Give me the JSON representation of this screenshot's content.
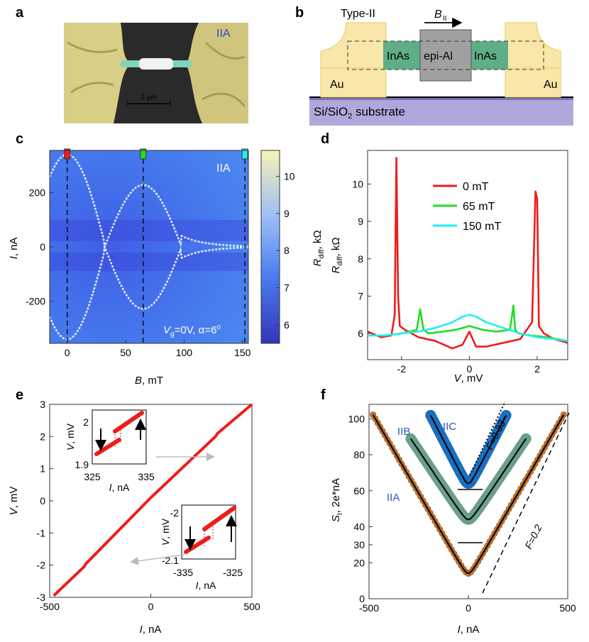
{
  "panel_labels": {
    "a": "a",
    "b": "b",
    "c": "c",
    "d": "d",
    "e": "e",
    "f": "f"
  },
  "panel_a": {
    "sample": "IIA",
    "scalebar": "1 µm"
  },
  "panel_b": {
    "title": "Type-II",
    "field_symbol": "B",
    "field_sub": "II",
    "inas_left": "InAs",
    "inas_right": "InAs",
    "epi": "epi-Al",
    "au_left": "Au",
    "au_right": "Au",
    "substrate": "Si/SiO",
    "substrate_sub": "2",
    "substrate_rest": " substrate"
  },
  "colors": {
    "red": "#ee1c1c",
    "green": "#22dd22",
    "cyan": "#22eeee",
    "brown": "#c87830",
    "teal": "#6aa08a",
    "blue": "#1a6fbf",
    "au": "#f8e7a8",
    "inas": "#5fae86",
    "epi": "#a0a0a0",
    "substrate": "#b0a8dc",
    "colormap_low": "#3333bb",
    "colormap_mid": "#4d88f0",
    "colormap_high": "#f6f3b8"
  },
  "chart_data": [
    {
      "panel": "c",
      "type": "heatmap",
      "xlabel_sym": "B",
      "xlabel_unit": ", mT",
      "ylabel_sym": "I",
      "ylabel_unit": ", nA",
      "xlim": [
        -15,
        155
      ],
      "ylim": [
        -355,
        355
      ],
      "xticks": [
        0,
        50,
        100,
        150
      ],
      "yticks": [
        -200,
        0,
        200
      ],
      "markers": [
        0,
        65,
        152
      ],
      "annotation": "IIA",
      "annotation2": "=0V, α=6",
      "annotation2_pre": "V",
      "annotation2_sub": "g",
      "annotation2_sup": "o",
      "colorbar": {
        "label_sym": "R",
        "label_sub": "diff",
        "label_unit": ", kΩ",
        "ticks": [
          6,
          7,
          8,
          9,
          10
        ],
        "range": [
          5.5,
          10.7
        ]
      }
    },
    {
      "panel": "d",
      "type": "line",
      "xlabel_sym": "V",
      "xlabel_unit": ", mV",
      "ylabel_sym": "R",
      "ylabel_sub": "diff",
      "ylabel_unit": ", kΩ",
      "xlim": [
        -3,
        2.9
      ],
      "ylim": [
        5.3,
        10.9
      ],
      "xticks": [
        -2,
        0,
        2
      ],
      "yticks": [
        6,
        7,
        8,
        9,
        10
      ],
      "series": [
        {
          "name": "0  mT",
          "color": "#ee1c1c",
          "x": [
            -3,
            -2.6,
            -2.3,
            -2.2,
            -2.15,
            -2.1,
            -2.05,
            -1.9,
            -1.5,
            -1.0,
            -0.5,
            -0.2,
            0,
            0.2,
            0.5,
            1.0,
            1.5,
            1.85,
            1.95,
            2.0,
            2.05,
            2.2,
            2.5,
            2.9
          ],
          "y": [
            6.05,
            5.9,
            5.95,
            6.5,
            10.7,
            7.0,
            6.2,
            6.1,
            5.9,
            5.8,
            5.6,
            5.7,
            6.05,
            5.65,
            5.65,
            5.75,
            5.85,
            6.3,
            9.8,
            9.6,
            6.2,
            6.0,
            5.85,
            5.75
          ]
        },
        {
          "name": "65 mT",
          "color": "#22dd22",
          "x": [
            -3,
            -2.5,
            -2,
            -1.55,
            -1.45,
            -1.35,
            -1.2,
            -0.8,
            -0.4,
            0,
            0.4,
            0.8,
            1.2,
            1.3,
            1.35,
            1.45,
            1.8,
            2.3,
            2.9
          ],
          "y": [
            5.95,
            5.95,
            6.0,
            6.1,
            6.65,
            6.1,
            6.0,
            6.05,
            6.1,
            6.2,
            6.1,
            6.05,
            6.1,
            6.75,
            6.1,
            6.0,
            5.95,
            5.9,
            5.8
          ]
        },
        {
          "name": "150 mT",
          "color": "#22eeee",
          "x": [
            -3,
            -2.5,
            -2,
            -1.5,
            -1,
            -0.5,
            -0.2,
            0,
            0.2,
            0.5,
            1,
            1.5,
            2,
            2.5,
            2.9
          ],
          "y": [
            5.95,
            5.95,
            6.0,
            6.05,
            6.15,
            6.3,
            6.45,
            6.5,
            6.45,
            6.3,
            6.15,
            6.0,
            5.9,
            5.85,
            5.8
          ]
        }
      ]
    },
    {
      "panel": "e",
      "type": "line",
      "xlabel_sym": "I",
      "xlabel_unit": ", nA",
      "ylabel_sym": "V",
      "ylabel_unit": ", mV",
      "xlim": [
        -500,
        500
      ],
      "ylim": [
        -3,
        3
      ],
      "xticks": [
        -500,
        0,
        500
      ],
      "yticks": [
        -3,
        -2,
        -1,
        0,
        1,
        2,
        3
      ],
      "series": [
        {
          "name": "",
          "color": "#ee1c1c",
          "x": [
            -480,
            -330,
            -320,
            0,
            320,
            330,
            500
          ],
          "y": [
            -2.95,
            -2.05,
            -1.95,
            0.1,
            2.0,
            2.1,
            3.0
          ]
        }
      ],
      "inset_top": {
        "xticks": [
          325,
          335
        ],
        "yticks": [
          1.9,
          2
        ],
        "xlabel_sym": "I",
        "xlabel_unit": ", nA",
        "ylabel_sym": "V",
        "ylabel_unit": ", mV"
      },
      "inset_bottom": {
        "xticks": [
          -335,
          -325
        ],
        "yticks": [
          -2.1,
          -2
        ],
        "xlabel_sym": "I",
        "xlabel_unit": ", nA",
        "ylabel_sym": "V",
        "ylabel_unit": ", mV"
      }
    },
    {
      "panel": "f",
      "type": "scatter",
      "xlabel_sym": "I",
      "xlabel_unit": ", nA",
      "ylabel_sym": "S",
      "ylabel_sub": "I",
      "ylabel_unit": ", 2e*nA",
      "xlim": [
        -500,
        500
      ],
      "ylim": [
        0,
        108
      ],
      "xticks": [
        -500,
        0,
        500
      ],
      "yticks": [
        0,
        20,
        30,
        40,
        60,
        80,
        100
      ],
      "series": [
        {
          "name": "IIA",
          "color": "#c87830",
          "minimum": [
            0,
            14
          ],
          "slope": 0.19,
          "xrange": [
            -480,
            480
          ]
        },
        {
          "name": "IIB",
          "color": "#6aa08a",
          "minimum": [
            0,
            44
          ],
          "slope": 0.165,
          "xrange": [
            -290,
            290
          ]
        },
        {
          "name": "IIC",
          "color": "#1a6fbf",
          "minimum": [
            0,
            64
          ],
          "slope": 0.215,
          "xrange": [
            -190,
            190
          ]
        }
      ],
      "guides": [
        {
          "label": "F=0.33"
        },
        {
          "label": "F=0.2"
        }
      ]
    }
  ]
}
